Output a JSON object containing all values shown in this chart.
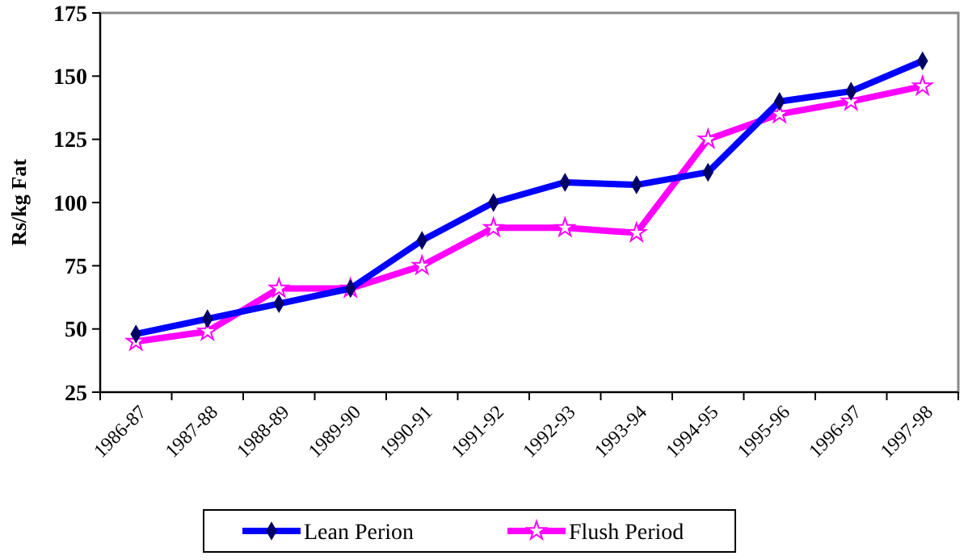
{
  "chart_data": {
    "type": "line",
    "ylabel": "Rs/kg Fat",
    "categories": [
      "1986-87",
      "1987-88",
      "1988-89",
      "1989-90",
      "1990-91",
      "1991-92",
      "1992-93",
      "1993-94",
      "1994-95",
      "1995-96",
      "1996-97",
      "1997-98"
    ],
    "series": [
      {
        "name": "Lean Perion",
        "color": "#0000ff",
        "marker": "diamond",
        "values": [
          48,
          54,
          60,
          66,
          85,
          100,
          108,
          107,
          112,
          140,
          144,
          156
        ]
      },
      {
        "name": "Flush Period",
        "color": "#ff00ff",
        "marker": "star",
        "values": [
          45,
          49,
          66,
          66,
          75,
          90,
          90,
          88,
          125,
          135,
          140,
          146
        ]
      }
    ],
    "ylim": [
      25,
      175
    ],
    "yticks": [
      25,
      50,
      75,
      100,
      125,
      150,
      175
    ],
    "grid": false,
    "legend": "bottom"
  }
}
